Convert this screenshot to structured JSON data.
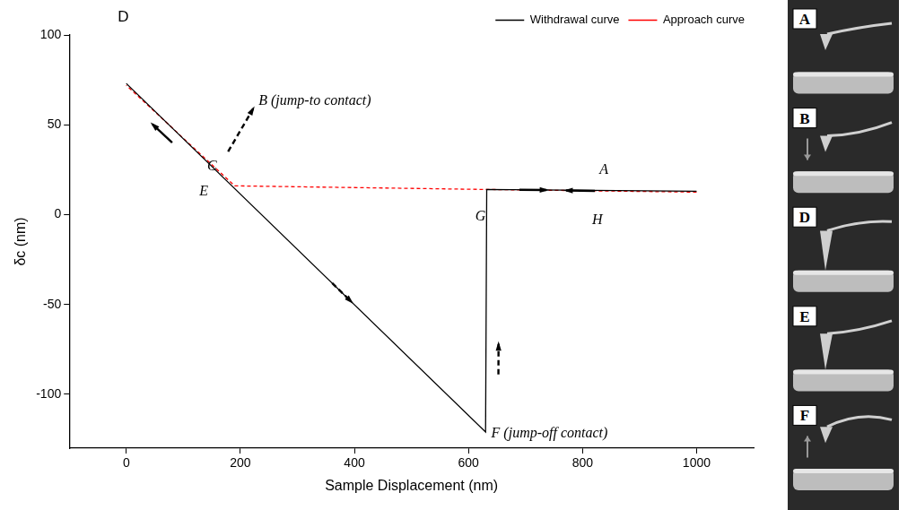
{
  "chart_data": {
    "type": "line",
    "x_label": "Sample Displacement (nm)",
    "y_label": "δc (nm)",
    "xlim": [
      -100,
      1100
    ],
    "xticks": [
      0,
      200,
      400,
      600,
      800,
      1000
    ],
    "ylim": [
      -130,
      100
    ],
    "yticks": [
      -100,
      -50,
      0,
      50,
      100
    ],
    "grid": false,
    "legend": "top right",
    "series": [
      {
        "name": "Withdrawal curve",
        "color": "#000000",
        "line_style": "solid",
        "x": [
          0,
          630,
          632,
          1000
        ],
        "values": [
          73,
          -121,
          14,
          13
        ]
      },
      {
        "name": "Approach curve",
        "color": "#ff0000",
        "line_style": "dashed",
        "x": [
          1000,
          630,
          190,
          0
        ],
        "values": [
          12.5,
          14,
          16,
          72
        ]
      }
    ],
    "annotations": [
      {
        "text": "D",
        "x": -15,
        "y": 110
      },
      {
        "text": "C",
        "x": 142,
        "y": 27
      },
      {
        "text": "B (jump-to contact)",
        "x": 232,
        "y": 63
      },
      {
        "text": "E",
        "x": 128,
        "y": 13
      },
      {
        "text": "A",
        "x": 830,
        "y": 25
      },
      {
        "text": "G",
        "x": 612,
        "y": -1
      },
      {
        "text": "H",
        "x": 817,
        "y": -3
      },
      {
        "text": "F (jump-off contact)",
        "x": 640,
        "y": -122
      }
    ]
  },
  "illustration": {
    "labels": [
      "A",
      "B",
      "D",
      "E",
      "F"
    ]
  }
}
